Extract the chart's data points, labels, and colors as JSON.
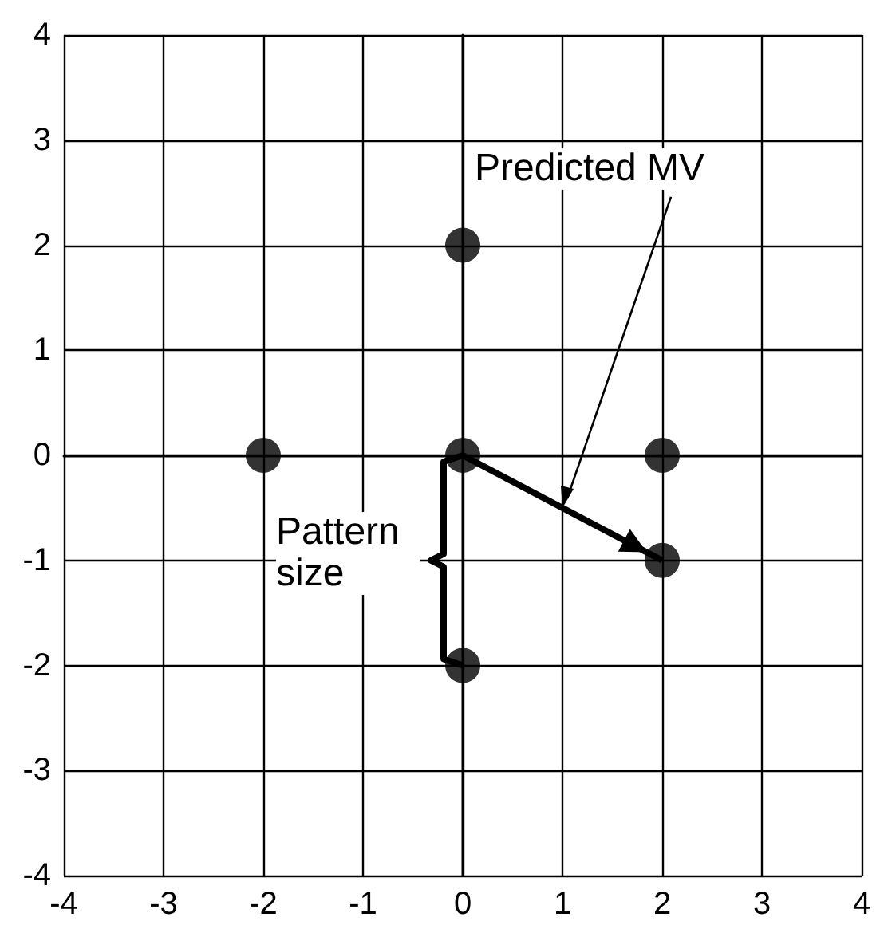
{
  "chart_data": {
    "type": "scatter",
    "xlim": [
      -4,
      4
    ],
    "ylim": [
      -4,
      4
    ],
    "xticks": [
      -4,
      -3,
      -2,
      -1,
      0,
      1,
      2,
      3,
      4
    ],
    "yticks": [
      -4,
      -3,
      -2,
      -1,
      0,
      1,
      2,
      3,
      4
    ],
    "grid": true,
    "series": [
      {
        "color": "#000000",
        "marker": "circle",
        "x": [
          -2,
          0,
          0,
          2,
          0,
          2
        ],
        "values": [
          0,
          2,
          0,
          0,
          -2,
          -1
        ]
      },
      {
        "type": "line",
        "color": "#000000",
        "marker": "none",
        "x": [
          0,
          2
        ],
        "values": [
          0,
          -1
        ]
      }
    ],
    "annotations": [
      {
        "text": "Predicted MV",
        "x": 1,
        "y": -0.5
      },
      "Pattern size"
    ]
  }
}
